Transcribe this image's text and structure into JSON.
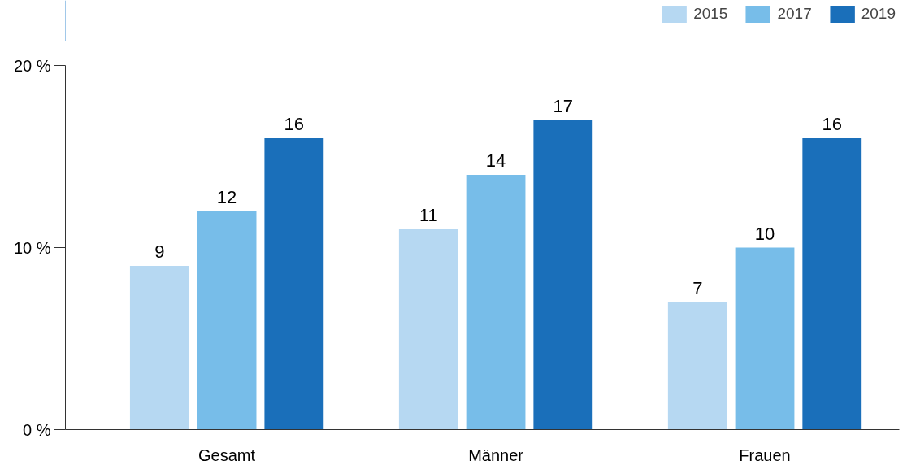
{
  "chart_data": {
    "type": "bar",
    "categories": [
      "Gesamt",
      "Männer",
      "Frauen"
    ],
    "series": [
      {
        "name": "2015",
        "color": "#b6d8f2",
        "values": [
          9,
          11,
          7
        ]
      },
      {
        "name": "2017",
        "color": "#77bde9",
        "values": [
          12,
          14,
          10
        ]
      },
      {
        "name": "2019",
        "color": "#1a6fba",
        "values": [
          16,
          17,
          16
        ]
      }
    ],
    "ylim": [
      0,
      20
    ],
    "yticks": [
      {
        "value": 0,
        "label": "0 %"
      },
      {
        "value": 10,
        "label": "10 %"
      },
      {
        "value": 20,
        "label": "20 %"
      }
    ],
    "data_labels": true,
    "grid": false,
    "legend": "top right"
  }
}
